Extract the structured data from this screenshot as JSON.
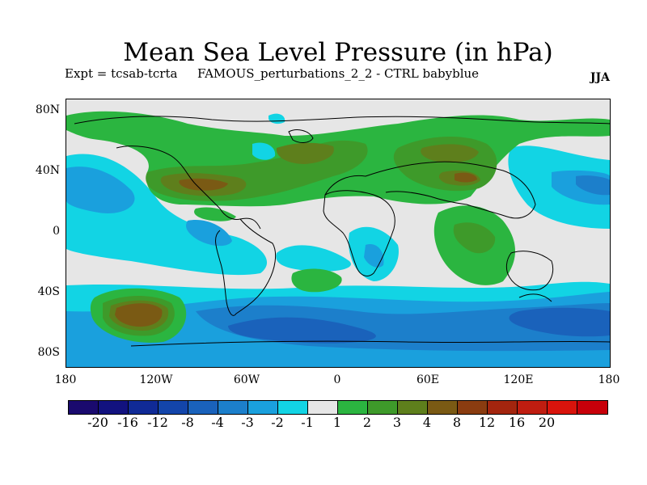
{
  "title": "Mean Sea Level Pressure (in hPa)",
  "subtitle_left": "Expt = tcsab-tcrta",
  "subtitle_center": "FAMOUS_perturbations_2_2 - CTRL babyblue",
  "season": "JJA",
  "y_axis_labels": [
    "80N",
    "40N",
    "0",
    "40S",
    "80S"
  ],
  "x_axis_labels": [
    "180",
    "120W",
    "60W",
    "0",
    "60E",
    "120E",
    "180"
  ],
  "colorbar": {
    "colors": [
      "#1a0a6e",
      "#12127f",
      "#102a96",
      "#1345aa",
      "#1a62bb",
      "#1c7fcb",
      "#1aa0dd",
      "#12d4e4",
      "#e6e6e6",
      "#2bb540",
      "#3e9a2a",
      "#5e7f1c",
      "#7a5a14",
      "#8a3c10",
      "#a3250e",
      "#bf1d10",
      "#d9140c",
      "#c8000a"
    ],
    "labels": [
      "-20",
      "-16",
      "-12",
      "-8",
      "-4",
      "-3",
      "-2",
      "-1",
      "1",
      "2",
      "3",
      "4",
      "8",
      "12",
      "16",
      "20"
    ]
  },
  "map_colors": {
    "background": "#e6e6e6",
    "c_m1": "#12d4e4",
    "c_m2": "#1aa0dd",
    "c_m3": "#1c7fcb",
    "c_m4": "#1a62bb",
    "c_m8": "#1345aa",
    "c_p1": "#2bb540",
    "c_p2": "#3e9a2a",
    "c_p3": "#5e7f1c",
    "c_p4": "#7a5a14",
    "c_p8": "#8a3c10"
  }
}
